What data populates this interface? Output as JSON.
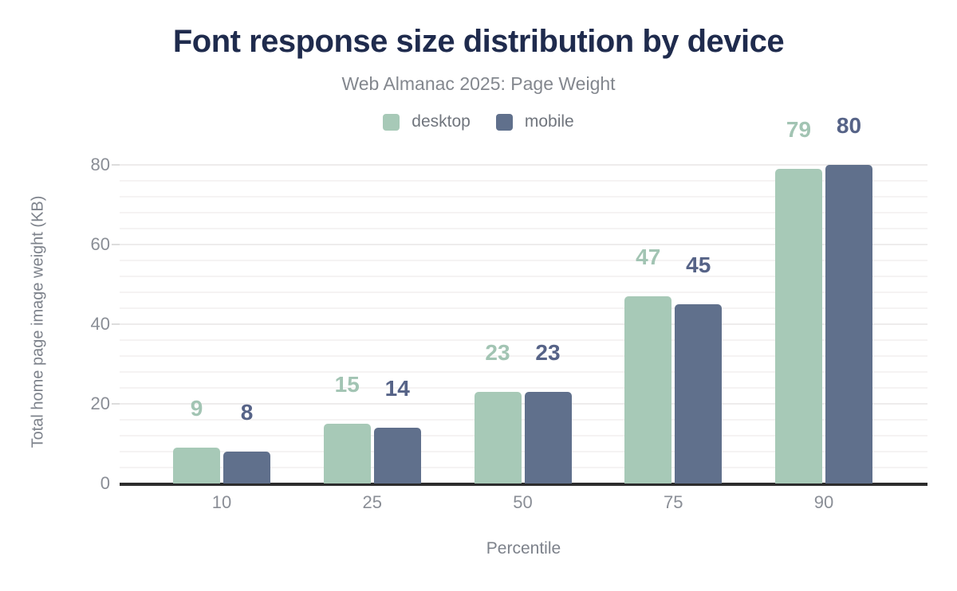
{
  "header": {
    "title": "Font response size distribution by device",
    "subtitle": "Web Almanac 2025: Page Weight"
  },
  "chart_data": {
    "type": "bar",
    "title": "Font response size distribution by device",
    "subtitle": "Web Almanac 2025: Page Weight",
    "categories": [
      "10",
      "25",
      "50",
      "75",
      "90"
    ],
    "series": [
      {
        "name": "desktop",
        "color": "#a7c9b7",
        "label_color": "#a2c4b3",
        "values": [
          9,
          15,
          23,
          47,
          79
        ]
      },
      {
        "name": "mobile",
        "color": "#60708c",
        "label_color": "#566387",
        "values": [
          8,
          14,
          23,
          45,
          80
        ]
      }
    ],
    "xlabel": "Percentile",
    "ylabel": "Total home page image weight (KB)",
    "ylim": [
      0,
      80
    ],
    "yticks": [
      0,
      20,
      40,
      60,
      80
    ],
    "grid": {
      "orientation": "horizontal",
      "minor_step": 4,
      "minor_color": "#f5f3f3",
      "major_color": "#eeecec"
    },
    "legend_position": "top",
    "axis_color": "#2d2d2d",
    "tick_label_color": "#8a8e96",
    "title_color": "#1f2b4d",
    "subtitle_color": "#83878e"
  }
}
